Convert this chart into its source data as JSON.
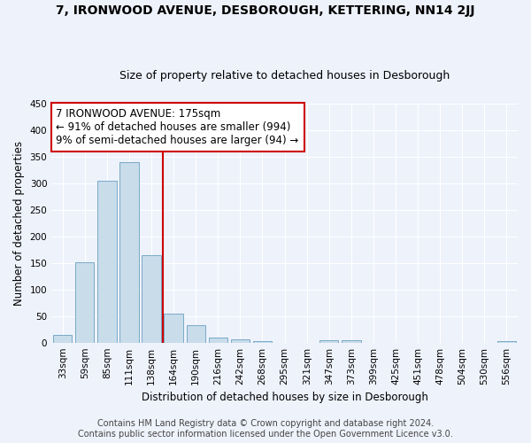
{
  "title": "7, IRONWOOD AVENUE, DESBOROUGH, KETTERING, NN14 2JJ",
  "subtitle": "Size of property relative to detached houses in Desborough",
  "xlabel": "Distribution of detached houses by size in Desborough",
  "ylabel": "Number of detached properties",
  "categories": [
    "33sqm",
    "59sqm",
    "85sqm",
    "111sqm",
    "138sqm",
    "164sqm",
    "190sqm",
    "216sqm",
    "242sqm",
    "268sqm",
    "295sqm",
    "321sqm",
    "347sqm",
    "373sqm",
    "399sqm",
    "425sqm",
    "451sqm",
    "478sqm",
    "504sqm",
    "530sqm",
    "556sqm"
  ],
  "values": [
    15,
    152,
    305,
    340,
    165,
    55,
    33,
    9,
    6,
    2,
    0,
    0,
    5,
    5,
    0,
    0,
    0,
    0,
    0,
    0,
    3
  ],
  "bar_color": "#c8dcea",
  "bar_edge_color": "#7aaac8",
  "vline_x_index": 4.5,
  "vline_color": "#cc0000",
  "annotation_line1": "7 IRONWOOD AVENUE: 175sqm",
  "annotation_line2": "← 91% of detached houses are smaller (994)",
  "annotation_line3": "9% of semi-detached houses are larger (94) →",
  "annotation_box_color": "white",
  "annotation_box_edge_color": "#cc0000",
  "ylim": [
    0,
    450
  ],
  "yticks": [
    0,
    50,
    100,
    150,
    200,
    250,
    300,
    350,
    400,
    450
  ],
  "footer1": "Contains HM Land Registry data © Crown copyright and database right 2024.",
  "footer2": "Contains public sector information licensed under the Open Government Licence v3.0.",
  "bg_color": "#eef2fb",
  "plot_bg_color": "#eef2fb",
  "title_fontsize": 10,
  "subtitle_fontsize": 9,
  "tick_fontsize": 7.5,
  "label_fontsize": 8.5,
  "annotation_fontsize": 8.5,
  "footer_fontsize": 7
}
